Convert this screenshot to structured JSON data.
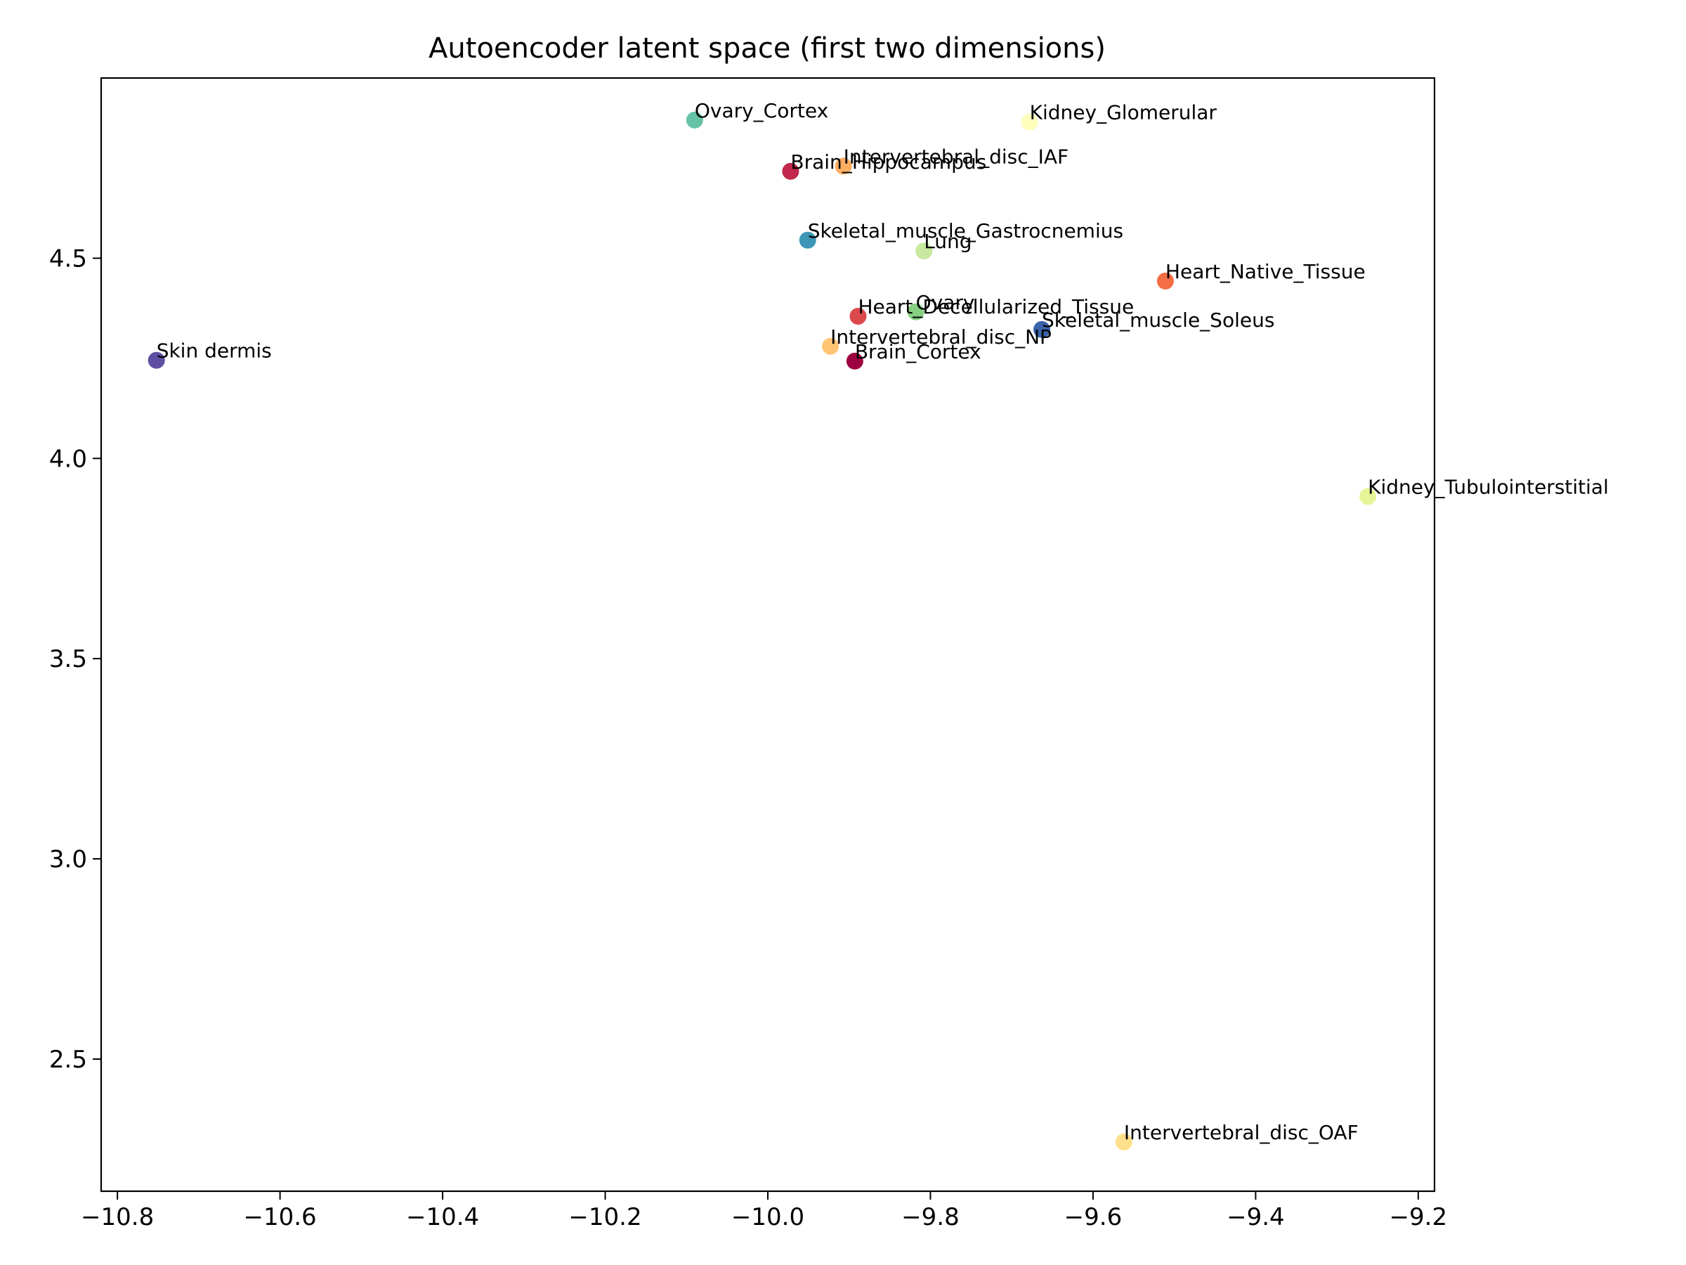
{
  "chart_data": {
    "type": "scatter",
    "title": "Autoencoder latent space (first two dimensions)",
    "xlabel": "",
    "ylabel": "",
    "xlim": [
      -10.82,
      -9.18
    ],
    "ylim": [
      2.17,
      4.95
    ],
    "x_ticks": [
      {
        "value": -10.8,
        "label": "−10.8"
      },
      {
        "value": -10.6,
        "label": "−10.6"
      },
      {
        "value": -10.4,
        "label": "−10.4"
      },
      {
        "value": -10.2,
        "label": "−10.2"
      },
      {
        "value": -10.0,
        "label": "−10.0"
      },
      {
        "value": -9.8,
        "label": "−9.8"
      },
      {
        "value": -9.6,
        "label": "−9.6"
      },
      {
        "value": -9.4,
        "label": "−9.4"
      },
      {
        "value": -9.2,
        "label": "−9.2"
      }
    ],
    "y_ticks": [
      {
        "value": 2.5,
        "label": "2.5"
      },
      {
        "value": 3.0,
        "label": "3.0"
      },
      {
        "value": 3.5,
        "label": "3.5"
      },
      {
        "value": 4.0,
        "label": "4.0"
      },
      {
        "value": 4.5,
        "label": "4.5"
      }
    ],
    "grid": false,
    "legend": "none",
    "points": [
      {
        "label": "Ovary_Cortex",
        "x": -10.09,
        "y": 4.845,
        "color": "#66c2a5"
      },
      {
        "label": "Kidney_Glomerular",
        "x": -9.678,
        "y": 4.84,
        "color": "#fefebd"
      },
      {
        "label": "Intervertebral_disc_IAF",
        "x": -9.907,
        "y": 4.73,
        "color": "#fdae61"
      },
      {
        "label": "Brain_Hippocampus",
        "x": -9.972,
        "y": 4.717,
        "color": "#c0274a"
      },
      {
        "label": "Skeletal_muscle_Gastrocnemius",
        "x": -9.951,
        "y": 4.545,
        "color": "#3e97b7"
      },
      {
        "label": "Lung",
        "x": -9.808,
        "y": 4.518,
        "color": "#c7e89e"
      },
      {
        "label": "Heart_Native_Tissue",
        "x": -9.511,
        "y": 4.443,
        "color": "#f46d43"
      },
      {
        "label": "Ovary",
        "x": -9.818,
        "y": 4.366,
        "color": "#87cf83"
      },
      {
        "label": "Heart_Decellularized_Tissue",
        "x": -9.889,
        "y": 4.355,
        "color": "#dc494c"
      },
      {
        "label": "Skeletal_muscle_Soleus",
        "x": -9.663,
        "y": 4.322,
        "color": "#3a64ac"
      },
      {
        "label": "Intervertebral_disc_NP",
        "x": -9.923,
        "y": 4.28,
        "color": "#fec575"
      },
      {
        "label": "Brain_Cortex",
        "x": -9.893,
        "y": 4.243,
        "color": "#9e0142"
      },
      {
        "label": "Skin dermis",
        "x": -10.752,
        "y": 4.245,
        "color": "#5e4fa2"
      },
      {
        "label": "Kidney_Tubulointerstitial",
        "x": -9.262,
        "y": 3.905,
        "color": "#e6f598"
      },
      {
        "label": "Intervertebral_disc_OAF",
        "x": -9.562,
        "y": 2.293,
        "color": "#fee08b"
      }
    ]
  }
}
